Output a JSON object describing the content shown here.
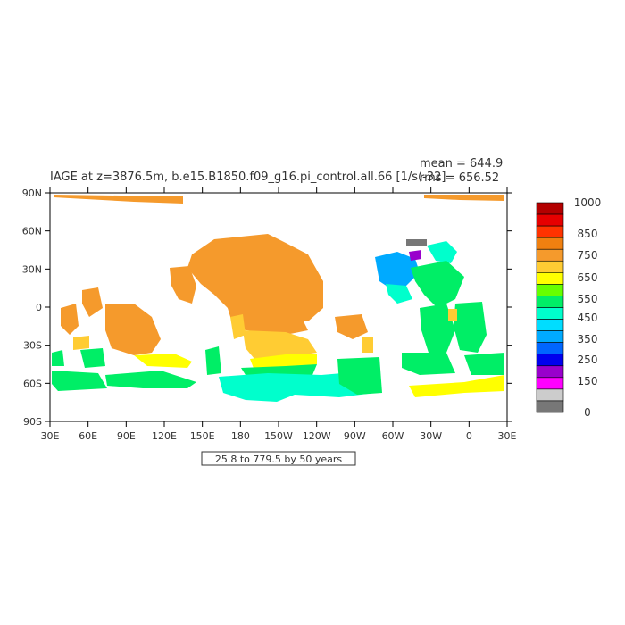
{
  "title": "IAGE at z=3876.5m, b.e15.B1850.f09_g16.pi_control.all.66 [1/s(-32]",
  "stats": {
    "mean": "mean = 644.9",
    "rms": "rms = 656.52"
  },
  "contour_info": "25.8 to 779.5 by 50 years",
  "chart_data": {
    "type": "heatmap",
    "x_ticks": [
      "30E",
      "60E",
      "90E",
      "120E",
      "150E",
      "180",
      "150W",
      "120W",
      "90W",
      "60W",
      "30W",
      "0",
      "30E"
    ],
    "y_ticks": [
      "90N",
      "60N",
      "30N",
      "0",
      "30S",
      "60S",
      "90S"
    ],
    "colorbar": {
      "labels": [
        "1000",
        "850",
        "750",
        "650",
        "550",
        "450",
        "350",
        "250",
        "150",
        "0"
      ],
      "colors": [
        "#b30000",
        "#e60000",
        "#ff3300",
        "#f08010",
        "#f59a2c",
        "#ffcc33",
        "#ffff00",
        "#66ff00",
        "#00ee66",
        "#00ffcc",
        "#00ddff",
        "#00aaff",
        "#0066ff",
        "#0000ee",
        "#9900cc",
        "#ff00ff",
        "#cccccc",
        "#777777"
      ]
    },
    "patches": [
      {
        "name": "north-pacific-old-water",
        "value": 780,
        "color": "#f59a2c"
      },
      {
        "name": "central-pacific",
        "value": 750,
        "color": "#f59a2c"
      },
      {
        "name": "south-pacific-ochre",
        "value": 680,
        "color": "#ffcc33"
      },
      {
        "name": "south-pacific-yellow",
        "value": 620,
        "color": "#ffff00"
      },
      {
        "name": "south-pacific-green",
        "value": 520,
        "color": "#00ee66"
      },
      {
        "name": "southern-ocean-pacific",
        "value": 440,
        "color": "#00ffcc"
      },
      {
        "name": "indian-ocean",
        "value": 760,
        "color": "#f59a2c"
      },
      {
        "name": "indian-ocean-south-yellow",
        "value": 630,
        "color": "#ffff00"
      },
      {
        "name": "southern-ocean-indian",
        "value": 520,
        "color": "#00ee66"
      },
      {
        "name": "east-pacific",
        "value": 760,
        "color": "#f59a2c"
      },
      {
        "name": "north-atlantic-young",
        "value": 330,
        "color": "#00aaff"
      },
      {
        "name": "labrador-sea",
        "value": 160,
        "color": "#9900cc"
      },
      {
        "name": "atlantic-green",
        "value": 520,
        "color": "#00ee66"
      },
      {
        "name": "south-atlantic-yellow",
        "value": 630,
        "color": "#ffff00"
      },
      {
        "name": "arctic",
        "value": 780,
        "color": "#f59a2c"
      }
    ]
  }
}
